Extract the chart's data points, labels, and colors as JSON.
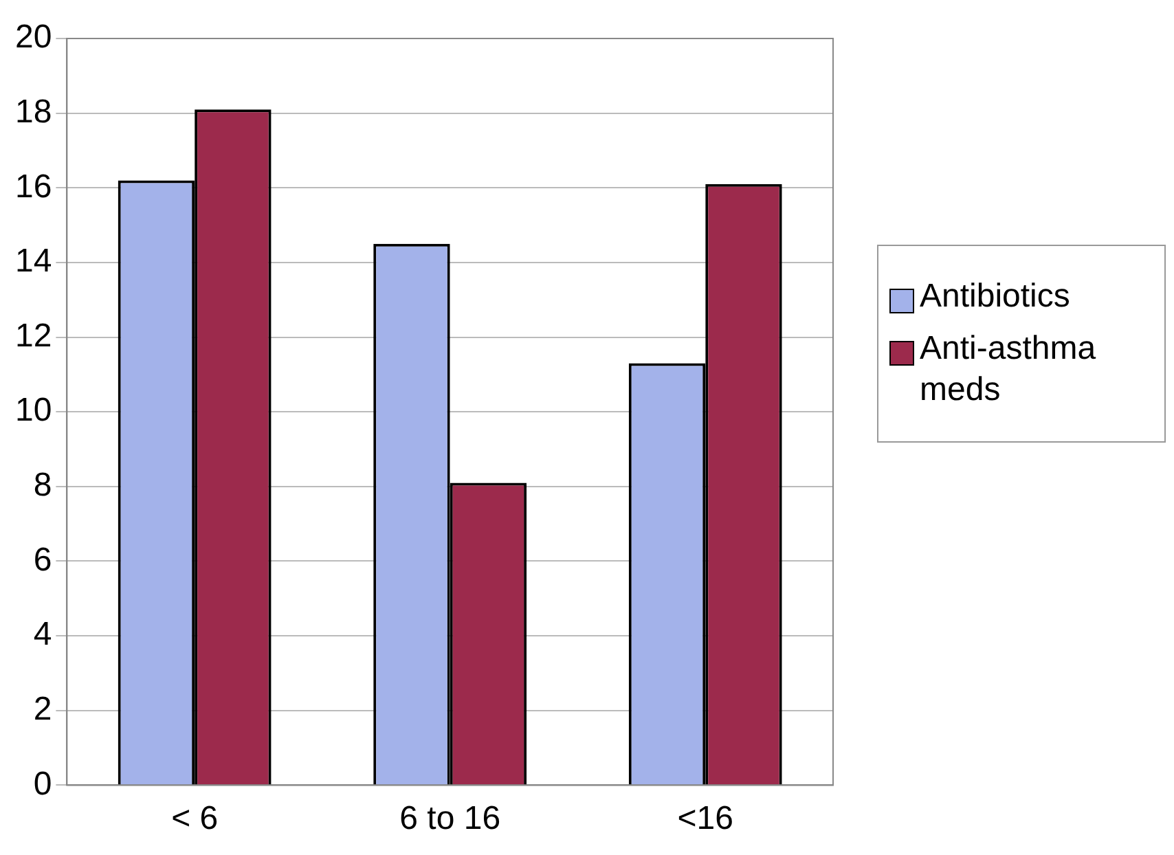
{
  "chart_data": {
    "type": "bar",
    "categories": [
      "< 6",
      "6 to 16",
      "<16"
    ],
    "series": [
      {
        "name": "Antibiotics",
        "color": "#a3b2ea",
        "values": [
          16.2,
          14.5,
          11.3
        ]
      },
      {
        "name": "Anti-asthma meds",
        "color": "#9c2a4c",
        "values": [
          18.1,
          8.1,
          16.1
        ]
      }
    ],
    "ylim": [
      0,
      20
    ],
    "yticks": [
      0,
      2,
      4,
      6,
      8,
      10,
      12,
      14,
      16,
      18,
      20
    ],
    "grid": "y",
    "legend": "right"
  }
}
